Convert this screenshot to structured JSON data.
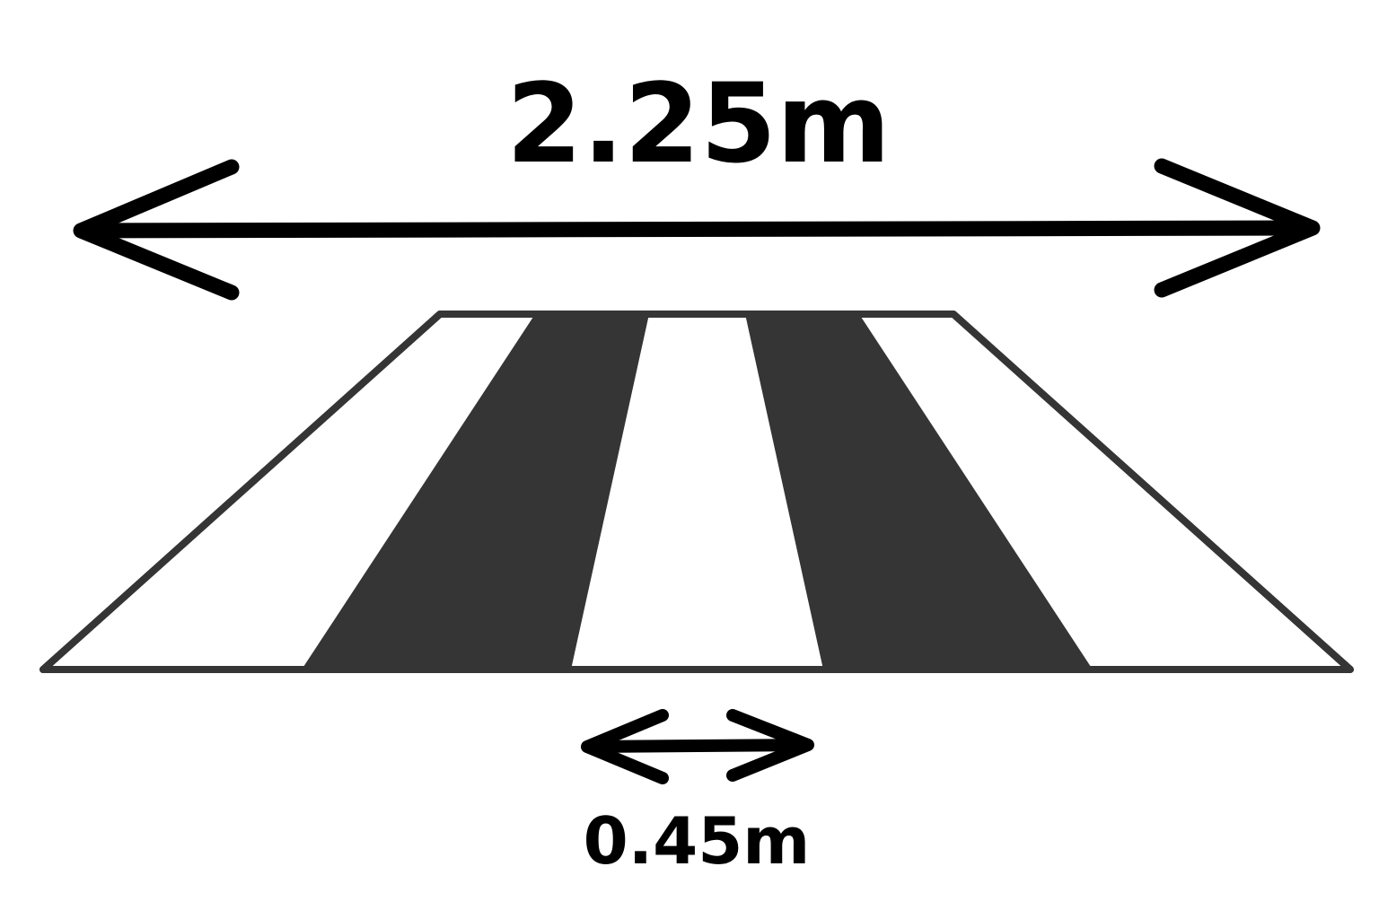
{
  "dimensions": {
    "total_width_label": "2.25m",
    "stripe_width_label": "0.45m"
  },
  "crossing": {
    "stripe_pattern": [
      "white",
      "dark",
      "white",
      "dark",
      "white"
    ]
  },
  "colors": {
    "dark_stripe": "#353535",
    "outline": "#353535",
    "white_stripe": "#ffffff",
    "arrow": "#000000",
    "background": "#ffffff"
  },
  "icons": {
    "total_width_arrow": "double-headed-arrow",
    "stripe_width_arrow": "double-headed-arrow"
  }
}
